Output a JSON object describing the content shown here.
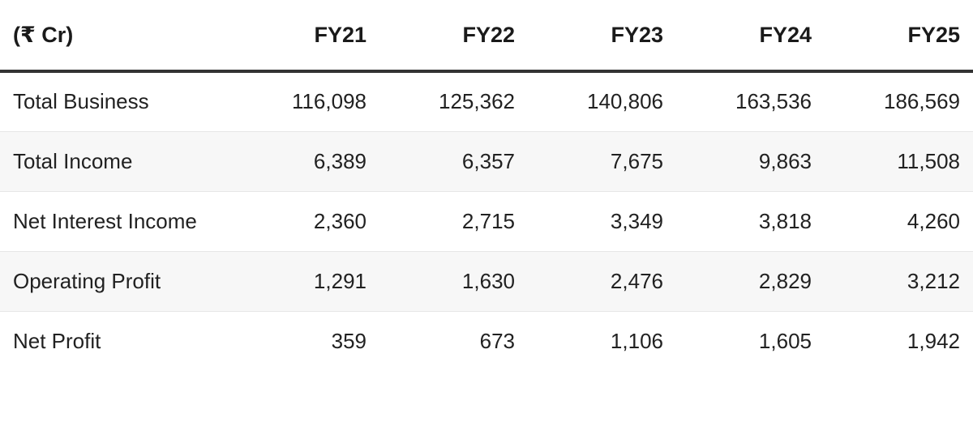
{
  "table": {
    "headers": [
      "(₹ Cr)",
      "FY21",
      "FY22",
      "FY23",
      "FY24",
      "FY25"
    ],
    "rows": [
      {
        "label": "Total Business",
        "values": [
          "116,098",
          "125,362",
          "140,806",
          "163,536",
          "186,569"
        ]
      },
      {
        "label": "Total Income",
        "values": [
          "6,389",
          "6,357",
          "7,675",
          "9,863",
          "11,508"
        ]
      },
      {
        "label": "Net Interest Income",
        "values": [
          "2,360",
          "2,715",
          "3,349",
          "3,818",
          "4,260"
        ]
      },
      {
        "label": "Operating Profit",
        "values": [
          "1,291",
          "1,630",
          "2,476",
          "2,829",
          "3,212"
        ]
      },
      {
        "label": "Net Profit",
        "values": [
          "359",
          "673",
          "1,106",
          "1,605",
          "1,942"
        ]
      }
    ]
  }
}
